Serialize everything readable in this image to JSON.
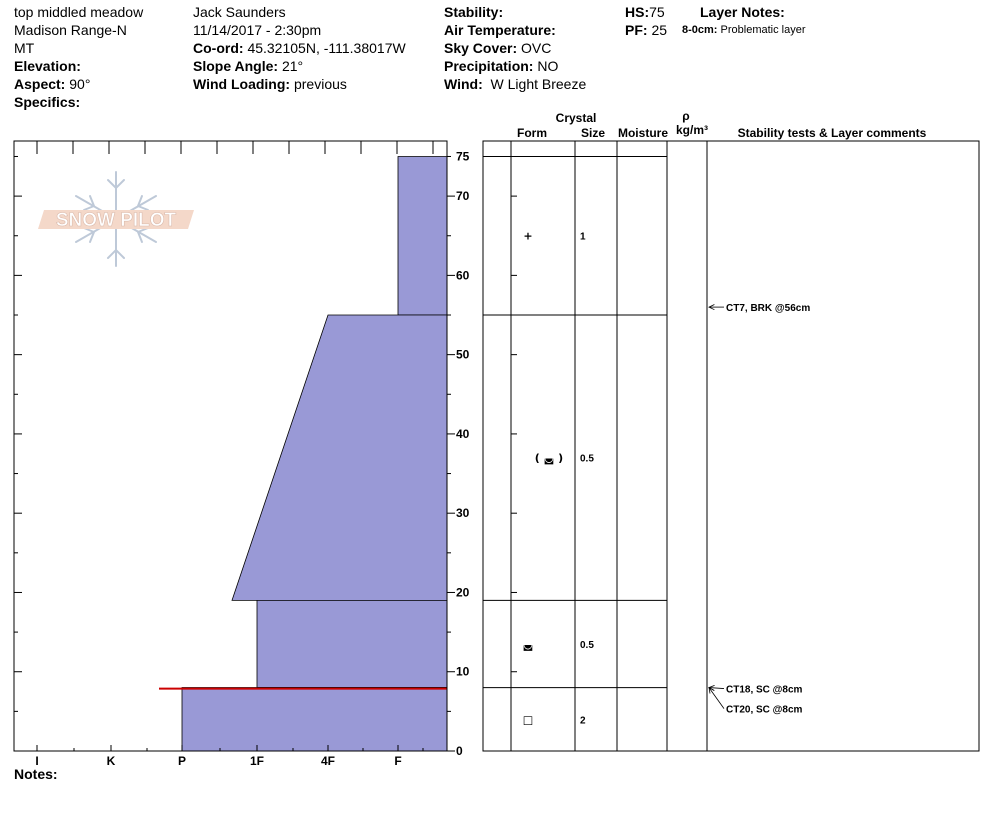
{
  "header": {
    "location": "top middled meadow",
    "range": "Madison Range-N",
    "state": "MT",
    "elevation_label": "Elevation:",
    "elevation_value": "",
    "aspect_label": "Aspect:",
    "aspect_value": "90°",
    "specifics_label": "Specifics:",
    "observer": "Jack Saunders",
    "datetime": "11/14/2017 - 2:30pm",
    "coord_label": "Co-ord:",
    "coord_value": "45.32105N, -111.38017W",
    "slope_label": "Slope Angle:",
    "slope_value": "21°",
    "wind_loading_label": "Wind Loading:",
    "wind_loading_value": "previous",
    "stability_label": "Stability:",
    "stability_value": "",
    "air_temp_label": "Air Temperature:",
    "air_temp_value": "",
    "sky_label": "Sky Cover:",
    "sky_value": "OVC",
    "precip_label": "Precipitation:",
    "precip_value": "NO",
    "wind_label": "Wind:",
    "wind_value": "W Light Breeze",
    "hs_label": "HS:",
    "hs_value": "75",
    "pf_label": "PF:",
    "pf_value": "25",
    "layer_notes_label": "Layer Notes:",
    "layer_note_range": "8-0cm:",
    "layer_note_text": "Problematic layer"
  },
  "logo": {
    "text": "SNOW PILOT"
  },
  "notes_label": "Notes:",
  "chart_data": {
    "type": "area",
    "title": "",
    "x_axis": {
      "ticks": [
        "I",
        "K",
        "P",
        "1F",
        "4F",
        "F"
      ]
    },
    "y_axis": {
      "range": [
        0,
        75
      ],
      "ticks": [
        0,
        10,
        20,
        30,
        40,
        50,
        60,
        70,
        75
      ]
    },
    "hand_hardness_layers": [
      {
        "bottom": 55,
        "top": 75,
        "hardness_bottom": "F",
        "hardness_top": "F"
      },
      {
        "bottom": 19,
        "top": 55,
        "hardness_bottom": "P-1F",
        "hardness_top": "4F"
      },
      {
        "bottom": 8,
        "top": 19,
        "hardness_bottom": "1F",
        "hardness_top": "1F"
      },
      {
        "bottom": 0,
        "top": 8,
        "hardness_bottom": "P",
        "hardness_top": "P"
      }
    ],
    "problematic_layer": {
      "depth": 8,
      "color": "#cc0000"
    },
    "fill_color": "#9999d6",
    "columns": {
      "crystal_label": "Crystal",
      "form_label": "Form",
      "size_label": "Size",
      "moisture_label": "Moisture",
      "rho_label": "ρ",
      "density_unit": "kg/m³",
      "comments_label": "Stability tests & Layer comments"
    },
    "crystal_layers": [
      {
        "depth": 65,
        "form": "+",
        "size": "1"
      },
      {
        "depth": 37,
        "form": "( ◛ )",
        "size": "0.5"
      },
      {
        "depth": 13.5,
        "form": "◛",
        "size": "0.5"
      },
      {
        "depth": 4,
        "form": "□",
        "size": "2"
      }
    ],
    "layer_boundaries": [
      75,
      55,
      19,
      8
    ],
    "stability_tests": [
      {
        "depth": 56,
        "label": "CT7, BRK @56cm"
      },
      {
        "depth": 8,
        "label": "CT18, SC @8cm"
      },
      {
        "depth": 8,
        "label": "CT20, SC @8cm"
      }
    ]
  }
}
